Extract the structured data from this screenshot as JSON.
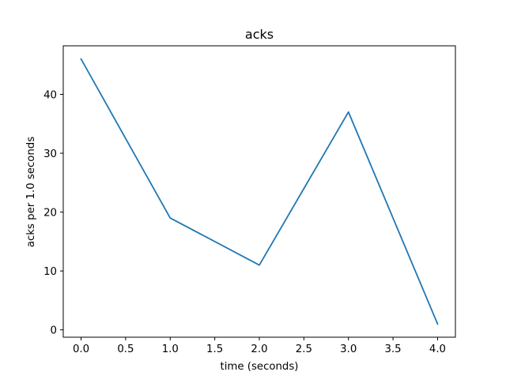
{
  "chart_data": {
    "type": "line",
    "title": "acks",
    "xlabel": "time (seconds)",
    "ylabel": "acks per 1.0 seconds",
    "xlim": [
      -0.2,
      4.2
    ],
    "ylim": [
      -1.25,
      48.25
    ],
    "xticks": [
      "0.0",
      "0.5",
      "1.0",
      "1.5",
      "2.0",
      "2.5",
      "3.0",
      "3.5",
      "4.0"
    ],
    "yticks": [
      "0",
      "10",
      "20",
      "30",
      "40"
    ],
    "grid": false,
    "series": [
      {
        "x": [
          0.0,
          1.0,
          2.0,
          3.0,
          4.0
        ],
        "y": [
          46,
          19,
          11,
          37,
          1
        ],
        "color": "#1f77b4"
      }
    ]
  }
}
